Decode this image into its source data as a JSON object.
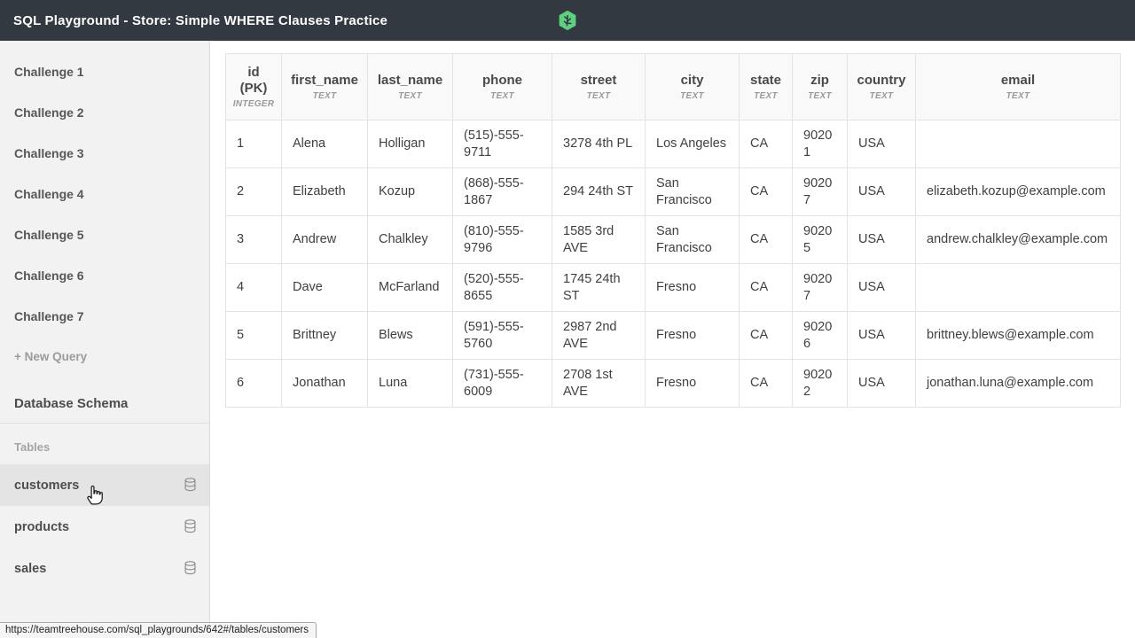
{
  "topbar": {
    "title": "SQL Playground - Store: Simple WHERE Clauses Practice",
    "logo_color": "#5fcf80"
  },
  "sidebar": {
    "challenges": [
      "Challenge 1",
      "Challenge 2",
      "Challenge 3",
      "Challenge 4",
      "Challenge 5",
      "Challenge 6",
      "Challenge 7"
    ],
    "new_query_label": "+ New Query",
    "schema_label": "Database Schema",
    "tables_label": "Tables",
    "tables": [
      {
        "name": "customers",
        "active": true
      },
      {
        "name": "products",
        "active": false
      },
      {
        "name": "sales",
        "active": false
      }
    ]
  },
  "table": {
    "columns": [
      {
        "label": "id\n(PK)",
        "type": "INTEGER"
      },
      {
        "label": "first_name",
        "type": "TEXT"
      },
      {
        "label": "last_name",
        "type": "TEXT"
      },
      {
        "label": "phone",
        "type": "TEXT"
      },
      {
        "label": "street",
        "type": "TEXT"
      },
      {
        "label": "city",
        "type": "TEXT"
      },
      {
        "label": "state",
        "type": "TEXT"
      },
      {
        "label": "zip",
        "type": "TEXT"
      },
      {
        "label": "country",
        "type": "TEXT"
      },
      {
        "label": "email",
        "type": "TEXT"
      }
    ],
    "rows": [
      [
        "1",
        "Alena",
        "Holligan",
        "(515)-555-9711",
        "3278 4th PL",
        "Los Angeles",
        "CA",
        "90201",
        "USA",
        ""
      ],
      [
        "2",
        "Elizabeth",
        "Kozup",
        "(868)-555-1867",
        "294 24th ST",
        "San Francisco",
        "CA",
        "90207",
        "USA",
        "elizabeth.kozup@example.com"
      ],
      [
        "3",
        "Andrew",
        "Chalkley",
        "(810)-555-9796",
        "1585 3rd AVE",
        "San Francisco",
        "CA",
        "90205",
        "USA",
        "andrew.chalkley@example.com"
      ],
      [
        "4",
        "Dave",
        "McFarland",
        "(520)-555-8655",
        "1745 24th ST",
        "Fresno",
        "CA",
        "90207",
        "USA",
        ""
      ],
      [
        "5",
        "Brittney",
        "Blews",
        "(591)-555-5760",
        "2987 2nd AVE",
        "Fresno",
        "CA",
        "90206",
        "USA",
        "brittney.blews@example.com"
      ],
      [
        "6",
        "Jonathan",
        "Luna",
        "(731)-555-6009",
        "2708 1st AVE",
        "Fresno",
        "CA",
        "90202",
        "USA",
        "jonathan.luna@example.com"
      ]
    ]
  },
  "statusbar": {
    "url": "https://teamtreehouse.com/sql_playgrounds/642#/tables/customers"
  }
}
